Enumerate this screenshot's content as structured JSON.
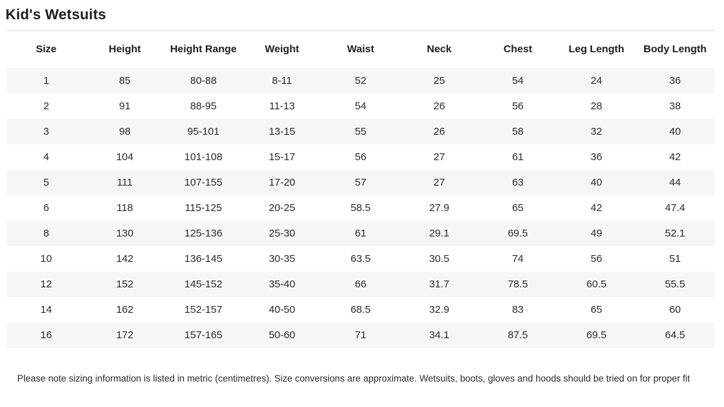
{
  "page": {
    "title": "Kid's Wetsuits",
    "note": "Please note sizing information is listed in metric (centimetres). Size conversions are approximate. Wetsuits, boots, gloves and hoods should be tried on for proper fit"
  },
  "table": {
    "headers": [
      "Size",
      "Height",
      "Height Range",
      "Weight",
      "Waist",
      "Neck",
      "Chest",
      "Leg Length",
      "Body Length"
    ],
    "rows": [
      [
        "1",
        "85",
        "80-88",
        "8-11",
        "52",
        "25",
        "54",
        "24",
        "36"
      ],
      [
        "2",
        "91",
        "88-95",
        "11-13",
        "54",
        "26",
        "56",
        "28",
        "38"
      ],
      [
        "3",
        "98",
        "95-101",
        "13-15",
        "55",
        "26",
        "58",
        "32",
        "40"
      ],
      [
        "4",
        "104",
        "101-108",
        "15-17",
        "56",
        "27",
        "61",
        "36",
        "42"
      ],
      [
        "5",
        "111",
        "107-155",
        "17-20",
        "57",
        "27",
        "63",
        "40",
        "44"
      ],
      [
        "6",
        "118",
        "115-125",
        "20-25",
        "58.5",
        "27.9",
        "65",
        "42",
        "47.4"
      ],
      [
        "8",
        "130",
        "125-136",
        "25-30",
        "61",
        "29.1",
        "69.5",
        "49",
        "52.1"
      ],
      [
        "10",
        "142",
        "136-145",
        "30-35",
        "63.5",
        "30.5",
        "74",
        "56",
        "51"
      ],
      [
        "12",
        "152",
        "145-152",
        "35-40",
        "66",
        "31.7",
        "78.5",
        "60.5",
        "55.5"
      ],
      [
        "14",
        "162",
        "152-157",
        "40-50",
        "68.5",
        "32.9",
        "83",
        "65",
        "60"
      ],
      [
        "16",
        "172",
        "157-165",
        "50-60",
        "71",
        "34.1",
        "87.5",
        "69.5",
        "64.5"
      ]
    ]
  },
  "colors": {
    "background": "#ffffff",
    "title_text": "#1d1d1d",
    "body_text": "#2a2a2a",
    "row_stripe": "#f6f6f6",
    "divider": "#d9d9d9"
  },
  "chart_data": {
    "type": "table",
    "title": "Kid's Wetsuits",
    "columns": [
      "Size",
      "Height",
      "Height Range",
      "Weight",
      "Waist",
      "Neck",
      "Chest",
      "Leg Length",
      "Body Length"
    ],
    "rows": [
      [
        "1",
        "85",
        "80-88",
        "8-11",
        "52",
        "25",
        "54",
        "24",
        "36"
      ],
      [
        "2",
        "91",
        "88-95",
        "11-13",
        "54",
        "26",
        "56",
        "28",
        "38"
      ],
      [
        "3",
        "98",
        "95-101",
        "13-15",
        "55",
        "26",
        "58",
        "32",
        "40"
      ],
      [
        "4",
        "104",
        "101-108",
        "15-17",
        "56",
        "27",
        "61",
        "36",
        "42"
      ],
      [
        "5",
        "111",
        "107-155",
        "17-20",
        "57",
        "27",
        "63",
        "40",
        "44"
      ],
      [
        "6",
        "118",
        "115-125",
        "20-25",
        "58.5",
        "27.9",
        "65",
        "42",
        "47.4"
      ],
      [
        "8",
        "130",
        "125-136",
        "25-30",
        "61",
        "29.1",
        "69.5",
        "49",
        "52.1"
      ],
      [
        "10",
        "142",
        "136-145",
        "30-35",
        "63.5",
        "30.5",
        "74",
        "56",
        "51"
      ],
      [
        "12",
        "152",
        "145-152",
        "35-40",
        "66",
        "31.7",
        "78.5",
        "60.5",
        "55.5"
      ],
      [
        "14",
        "162",
        "152-157",
        "40-50",
        "68.5",
        "32.9",
        "83",
        "65",
        "60"
      ],
      [
        "16",
        "172",
        "157-165",
        "50-60",
        "71",
        "34.1",
        "87.5",
        "69.5",
        "64.5"
      ]
    ]
  }
}
